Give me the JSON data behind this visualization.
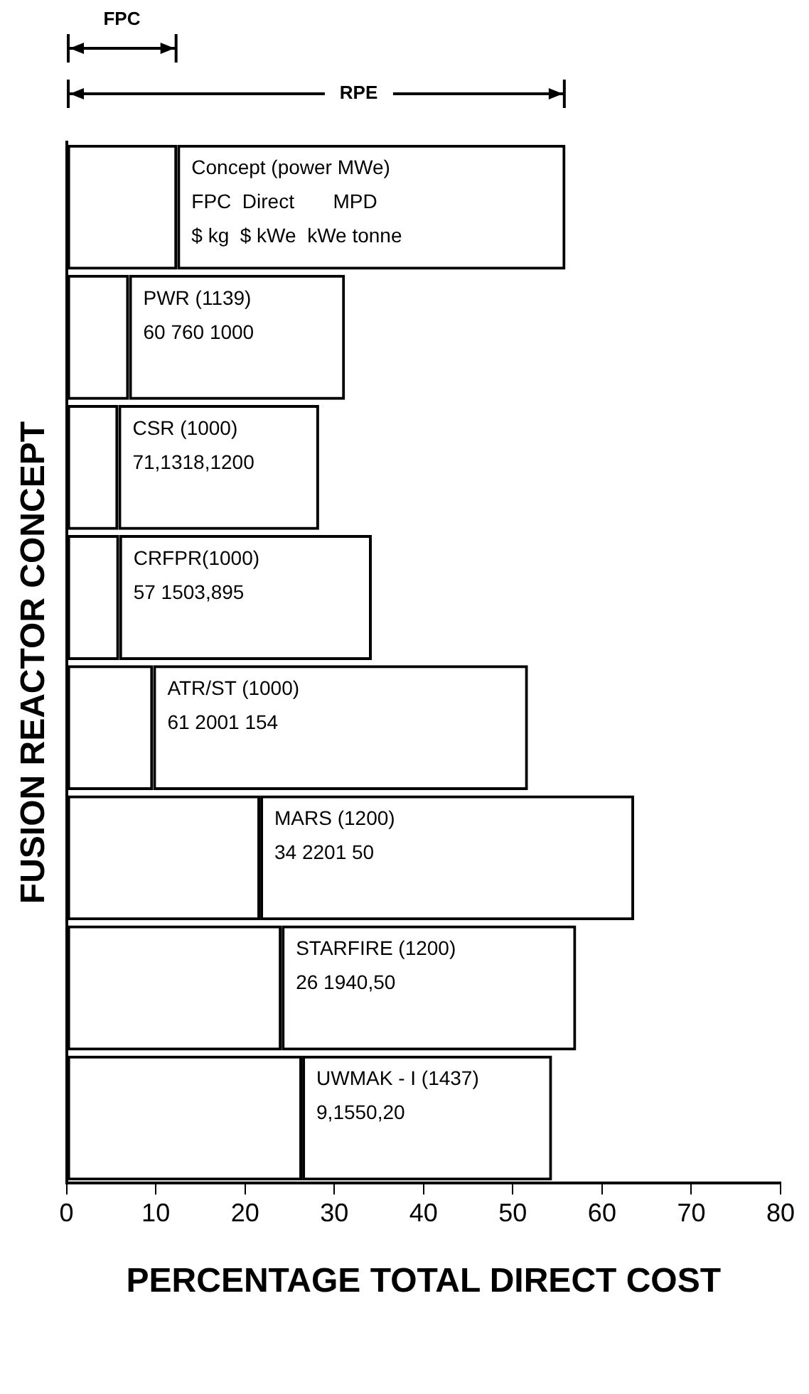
{
  "chart_data": {
    "type": "bar",
    "orientation": "horizontal",
    "stacked": true,
    "grid": false,
    "tick_labels": "x",
    "xlabel": "PERCENTAGE TOTAL DIRECT COST",
    "ylabel": "FUSION REACTOR CONCEPT",
    "categories": [
      "Concept (power MWe)\nFPC  Direct       MPD\n$ kg  $ kWe  kWe tonne",
      "PWR (1139)\n60 760 1000",
      "CSR (1000)\n71,1318,1200",
      "CRFPR(1000)\n57 1503,895",
      "ATR/ST (1000)\n61 2001 154",
      "MARS (1200)\n34 2201 50",
      "STARFIRE (1200)\n26 1940,50",
      "UWMAK - I (1437)\n9,1550,20"
    ],
    "series": [
      {
        "color": "#000000",
        "values": [
          12.4,
          7.0,
          5.8,
          5.9,
          9.7,
          21.7,
          24.1,
          26.4
        ]
      },
      {
        "color": "#000000",
        "values": [
          43.5,
          24.2,
          22.5,
          28.3,
          42.0,
          41.9,
          33.0,
          28.0
        ]
      }
    ],
    "xlim": [
      0,
      80
    ],
    "xticks": [
      0,
      10,
      20,
      30,
      40,
      50,
      60,
      70,
      80
    ],
    "annotations": [
      "FPC",
      "RPE"
    ]
  }
}
